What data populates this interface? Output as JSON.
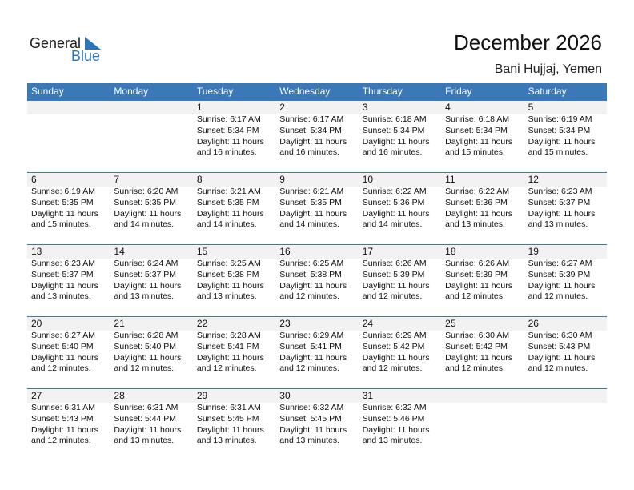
{
  "logo": {
    "word1": "General",
    "word2": "Blue"
  },
  "header": {
    "title": "December 2026",
    "location": "Bani Hujjaj, Yemen"
  },
  "weekdays": [
    "Sunday",
    "Monday",
    "Tuesday",
    "Wednesday",
    "Thursday",
    "Friday",
    "Saturday"
  ],
  "weeks": [
    [
      null,
      null,
      [
        "1",
        "Sunrise: 6:17 AM",
        "Sunset: 5:34 PM",
        "Daylight: 11 hours",
        "and 16 minutes."
      ],
      [
        "2",
        "Sunrise: 6:17 AM",
        "Sunset: 5:34 PM",
        "Daylight: 11 hours",
        "and 16 minutes."
      ],
      [
        "3",
        "Sunrise: 6:18 AM",
        "Sunset: 5:34 PM",
        "Daylight: 11 hours",
        "and 16 minutes."
      ],
      [
        "4",
        "Sunrise: 6:18 AM",
        "Sunset: 5:34 PM",
        "Daylight: 11 hours",
        "and 15 minutes."
      ],
      [
        "5",
        "Sunrise: 6:19 AM",
        "Sunset: 5:34 PM",
        "Daylight: 11 hours",
        "and 15 minutes."
      ]
    ],
    [
      [
        "6",
        "Sunrise: 6:19 AM",
        "Sunset: 5:35 PM",
        "Daylight: 11 hours",
        "and 15 minutes."
      ],
      [
        "7",
        "Sunrise: 6:20 AM",
        "Sunset: 5:35 PM",
        "Daylight: 11 hours",
        "and 14 minutes."
      ],
      [
        "8",
        "Sunrise: 6:21 AM",
        "Sunset: 5:35 PM",
        "Daylight: 11 hours",
        "and 14 minutes."
      ],
      [
        "9",
        "Sunrise: 6:21 AM",
        "Sunset: 5:35 PM",
        "Daylight: 11 hours",
        "and 14 minutes."
      ],
      [
        "10",
        "Sunrise: 6:22 AM",
        "Sunset: 5:36 PM",
        "Daylight: 11 hours",
        "and 14 minutes."
      ],
      [
        "11",
        "Sunrise: 6:22 AM",
        "Sunset: 5:36 PM",
        "Daylight: 11 hours",
        "and 13 minutes."
      ],
      [
        "12",
        "Sunrise: 6:23 AM",
        "Sunset: 5:37 PM",
        "Daylight: 11 hours",
        "and 13 minutes."
      ]
    ],
    [
      [
        "13",
        "Sunrise: 6:23 AM",
        "Sunset: 5:37 PM",
        "Daylight: 11 hours",
        "and 13 minutes."
      ],
      [
        "14",
        "Sunrise: 6:24 AM",
        "Sunset: 5:37 PM",
        "Daylight: 11 hours",
        "and 13 minutes."
      ],
      [
        "15",
        "Sunrise: 6:25 AM",
        "Sunset: 5:38 PM",
        "Daylight: 11 hours",
        "and 13 minutes."
      ],
      [
        "16",
        "Sunrise: 6:25 AM",
        "Sunset: 5:38 PM",
        "Daylight: 11 hours",
        "and 12 minutes."
      ],
      [
        "17",
        "Sunrise: 6:26 AM",
        "Sunset: 5:39 PM",
        "Daylight: 11 hours",
        "and 12 minutes."
      ],
      [
        "18",
        "Sunrise: 6:26 AM",
        "Sunset: 5:39 PM",
        "Daylight: 11 hours",
        "and 12 minutes."
      ],
      [
        "19",
        "Sunrise: 6:27 AM",
        "Sunset: 5:39 PM",
        "Daylight: 11 hours",
        "and 12 minutes."
      ]
    ],
    [
      [
        "20",
        "Sunrise: 6:27 AM",
        "Sunset: 5:40 PM",
        "Daylight: 11 hours",
        "and 12 minutes."
      ],
      [
        "21",
        "Sunrise: 6:28 AM",
        "Sunset: 5:40 PM",
        "Daylight: 11 hours",
        "and 12 minutes."
      ],
      [
        "22",
        "Sunrise: 6:28 AM",
        "Sunset: 5:41 PM",
        "Daylight: 11 hours",
        "and 12 minutes."
      ],
      [
        "23",
        "Sunrise: 6:29 AM",
        "Sunset: 5:41 PM",
        "Daylight: 11 hours",
        "and 12 minutes."
      ],
      [
        "24",
        "Sunrise: 6:29 AM",
        "Sunset: 5:42 PM",
        "Daylight: 11 hours",
        "and 12 minutes."
      ],
      [
        "25",
        "Sunrise: 6:30 AM",
        "Sunset: 5:42 PM",
        "Daylight: 11 hours",
        "and 12 minutes."
      ],
      [
        "26",
        "Sunrise: 6:30 AM",
        "Sunset: 5:43 PM",
        "Daylight: 11 hours",
        "and 12 minutes."
      ]
    ],
    [
      [
        "27",
        "Sunrise: 6:31 AM",
        "Sunset: 5:43 PM",
        "Daylight: 11 hours",
        "and 12 minutes."
      ],
      [
        "28",
        "Sunrise: 6:31 AM",
        "Sunset: 5:44 PM",
        "Daylight: 11 hours",
        "and 13 minutes."
      ],
      [
        "29",
        "Sunrise: 6:31 AM",
        "Sunset: 5:45 PM",
        "Daylight: 11 hours",
        "and 13 minutes."
      ],
      [
        "30",
        "Sunrise: 6:32 AM",
        "Sunset: 5:45 PM",
        "Daylight: 11 hours",
        "and 13 minutes."
      ],
      [
        "31",
        "Sunrise: 6:32 AM",
        "Sunset: 5:46 PM",
        "Daylight: 11 hours",
        "and 13 minutes."
      ],
      null,
      null
    ]
  ]
}
